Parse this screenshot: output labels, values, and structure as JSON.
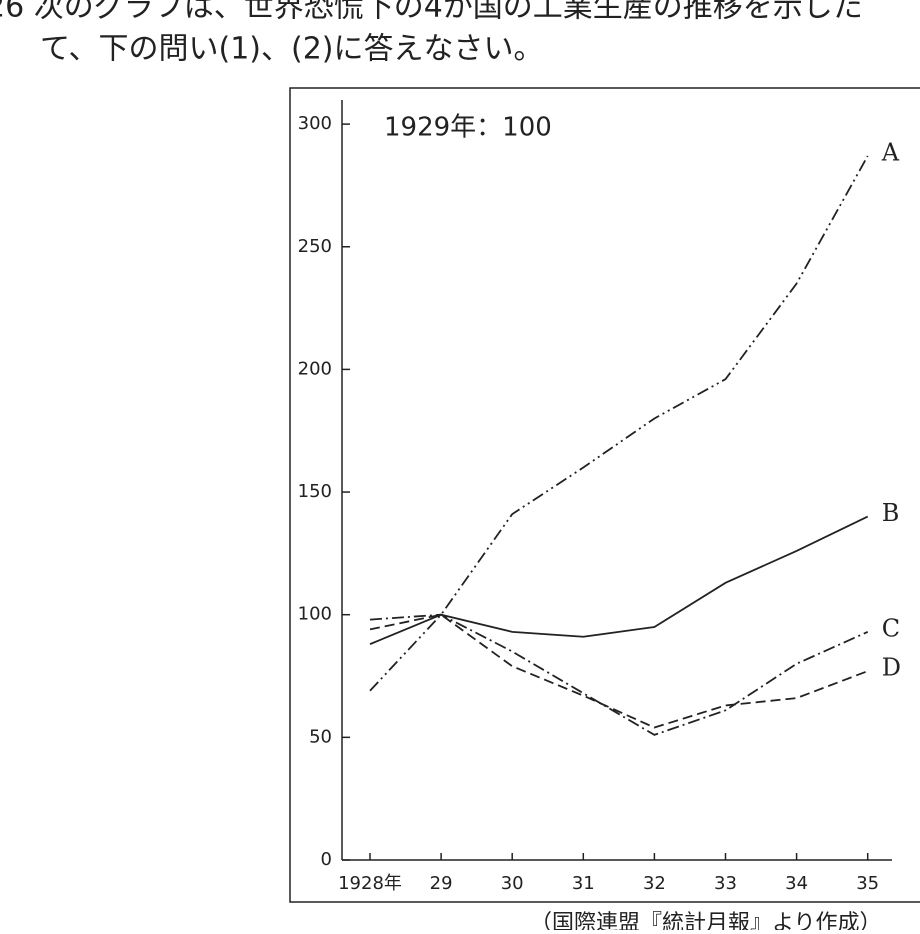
{
  "question": [
    "26 次のグラフは、世界恐慌下の4か国の工業生産の推移を示した",
    "て、下の問い(1)、(2)に答えなさい。"
  ],
  "chart_data": {
    "type": "line",
    "annotation": "1929年：100",
    "categories": [
      "1928年",
      "29",
      "30",
      "31",
      "32",
      "33",
      "34",
      "35"
    ],
    "ylim": [
      0,
      310
    ],
    "yticks": [
      0,
      50,
      100,
      150,
      200,
      250,
      300
    ],
    "series": [
      {
        "name": "A",
        "color": "#222222",
        "values": [
          69,
          100,
          141,
          160,
          180,
          196,
          235,
          287
        ]
      },
      {
        "name": "B",
        "color": "#222222",
        "values": [
          88,
          100,
          93,
          91,
          95,
          113,
          126,
          140
        ]
      },
      {
        "name": "C",
        "color": "#222222",
        "values": [
          98,
          100,
          85,
          68,
          51,
          61,
          80,
          93
        ]
      },
      {
        "name": "D",
        "color": "#222222",
        "values": [
          94,
          100,
          79,
          67,
          54,
          63,
          66,
          77
        ]
      }
    ]
  },
  "source": "（国際連盟『統計月報』より作成）"
}
